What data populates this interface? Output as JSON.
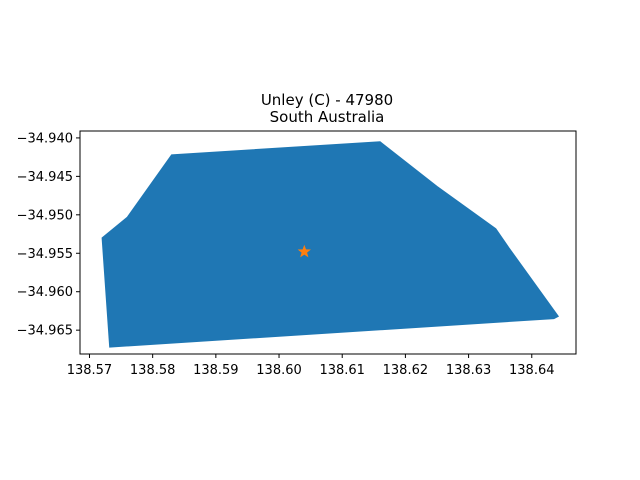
{
  "title": {
    "line1": "Unley (C) - 47980",
    "line2": "South Australia"
  },
  "colors": {
    "region_fill": "#1f77b4",
    "centroid_marker": "#ff7f0e",
    "axes": "#000000",
    "background": "#ffffff"
  },
  "chart_data": {
    "type": "map",
    "xlim": [
      138.5685,
      138.647
    ],
    "ylim": [
      -34.9681,
      -34.9391
    ],
    "x_ticks": [
      {
        "value": 138.57,
        "label": "138.57"
      },
      {
        "value": 138.58,
        "label": "138.58"
      },
      {
        "value": 138.59,
        "label": "138.59"
      },
      {
        "value": 138.6,
        "label": "138.60"
      },
      {
        "value": 138.61,
        "label": "138.61"
      },
      {
        "value": 138.62,
        "label": "138.62"
      },
      {
        "value": 138.63,
        "label": "138.63"
      },
      {
        "value": 138.64,
        "label": "138.64"
      }
    ],
    "y_ticks": [
      {
        "value": -34.94,
        "label": "−34.940"
      },
      {
        "value": -34.945,
        "label": "−34.945"
      },
      {
        "value": -34.95,
        "label": "−34.950"
      },
      {
        "value": -34.955,
        "label": "−34.955"
      },
      {
        "value": -34.96,
        "label": "−34.960"
      },
      {
        "value": -34.965,
        "label": "−34.965"
      }
    ],
    "region_polygon": [
      [
        138.572,
        -34.953
      ],
      [
        138.576,
        -34.9503
      ],
      [
        138.583,
        -34.9422
      ],
      [
        138.616,
        -34.9405
      ],
      [
        138.625,
        -34.9463
      ],
      [
        138.6343,
        -34.9518
      ],
      [
        138.6364,
        -34.9543
      ],
      [
        138.6442,
        -34.9632
      ],
      [
        138.6435,
        -34.9635
      ],
      [
        138.5732,
        -34.9672
      ]
    ],
    "centroid": [
      138.604,
      -34.9548
    ],
    "grid": false
  }
}
